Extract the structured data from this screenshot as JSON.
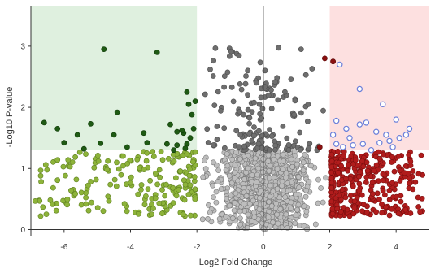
{
  "chart_data": {
    "type": "scatter",
    "title": "",
    "xlabel": "Log2 Fold Change",
    "ylabel": "-Log10 P-value",
    "xlim": [
      -7,
      5
    ],
    "ylim": [
      -0.1,
      3.65
    ],
    "x_ticks": [
      "-6",
      "-4",
      "-2",
      "0",
      "2",
      "4"
    ],
    "y_ticks": [
      "0",
      "1",
      "2",
      "3"
    ],
    "thresholds": {
      "fold_change_low": -2,
      "fold_change_high": 2,
      "p_value": 1.3
    },
    "regions": [
      {
        "name": "significant-down",
        "color": "#dff0df",
        "x": [
          -7,
          -2
        ],
        "y": [
          1.3,
          3.65
        ]
      },
      {
        "name": "significant-up",
        "color": "#fde0e0",
        "x": [
          2,
          5
        ],
        "y": [
          1.3,
          3.65
        ]
      }
    ],
    "colors": {
      "significant_down": "#1f5a14",
      "down": "#8db33a",
      "not_significant": "#bdbdbd",
      "not_significant_high": "#6e6e6e",
      "up": "#b01c1c",
      "significant_up_outline": "#6a7fd9",
      "significant_up_dark": "#8a1010"
    },
    "series": [
      {
        "category": "significant-down",
        "points": [
          [
            -4.8,
            2.95
          ],
          [
            -3.2,
            2.9
          ],
          [
            -6.6,
            1.75
          ],
          [
            -6.2,
            1.65
          ],
          [
            -5.6,
            1.55
          ],
          [
            -5.2,
            1.73
          ],
          [
            -4.4,
            1.92
          ],
          [
            -4.5,
            1.55
          ],
          [
            -3.6,
            1.58
          ],
          [
            -3.5,
            1.42
          ],
          [
            -4.9,
            1.41
          ],
          [
            -6.0,
            1.42
          ],
          [
            -5.4,
            1.32
          ],
          [
            -2.9,
            1.4
          ],
          [
            -2.6,
            1.38
          ],
          [
            -2.3,
            1.4
          ],
          [
            -2.2,
            1.5
          ],
          [
            -2.1,
            1.65
          ],
          [
            -2.15,
            1.88
          ],
          [
            -2.25,
            2.05
          ],
          [
            -2.05,
            2.1
          ],
          [
            -2.3,
            2.25
          ],
          [
            -2.4,
            1.58
          ],
          [
            -2.8,
            1.72
          ],
          [
            -2.6,
            1.6
          ],
          [
            -2.7,
            1.3
          ],
          [
            -4.1,
            1.35
          ],
          [
            -2.45,
            1.62
          ],
          [
            -2.35,
            1.33
          ]
        ]
      },
      {
        "category": "significant-up",
        "points": [
          [
            2.3,
            2.7
          ],
          [
            2.9,
            2.3
          ],
          [
            3.6,
            2.05
          ],
          [
            4.0,
            1.8
          ],
          [
            2.2,
            1.78
          ],
          [
            2.5,
            1.65
          ],
          [
            2.9,
            1.72
          ],
          [
            3.1,
            1.75
          ],
          [
            3.4,
            1.6
          ],
          [
            3.7,
            1.55
          ],
          [
            3.8,
            1.45
          ],
          [
            4.1,
            1.5
          ],
          [
            4.3,
            1.55
          ],
          [
            2.6,
            1.5
          ],
          [
            3.0,
            1.4
          ],
          [
            2.2,
            1.4
          ],
          [
            2.4,
            1.35
          ],
          [
            3.25,
            1.3
          ],
          [
            3.9,
            1.35
          ],
          [
            2.1,
            1.55
          ],
          [
            2.7,
            1.38
          ],
          [
            3.5,
            1.42
          ],
          [
            4.4,
            1.65
          ]
        ]
      },
      {
        "category": "significant-up-dark",
        "points": [
          [
            1.85,
            2.8
          ],
          [
            2.1,
            2.75
          ],
          [
            1.7,
            1.35
          ]
        ]
      }
    ],
    "generated_series": [
      {
        "category": "down",
        "count": 200,
        "x_range": [
          -6.9,
          -2.05
        ],
        "y_range": [
          0.22,
          1.28
        ],
        "seed": 7
      },
      {
        "category": "not-significant",
        "count": 900,
        "x_range": [
          -2.0,
          2.0
        ],
        "y_range": [
          0.0,
          1.28
        ],
        "seed": 11
      },
      {
        "category": "not-significant-high",
        "count": 160,
        "x_range": [
          -2.0,
          2.0
        ],
        "y_range": [
          1.3,
          3.0
        ],
        "seed": 19
      },
      {
        "category": "up",
        "count": 320,
        "x_range": [
          2.05,
          4.8
        ],
        "y_range": [
          0.22,
          1.28
        ],
        "seed": 23
      }
    ]
  }
}
